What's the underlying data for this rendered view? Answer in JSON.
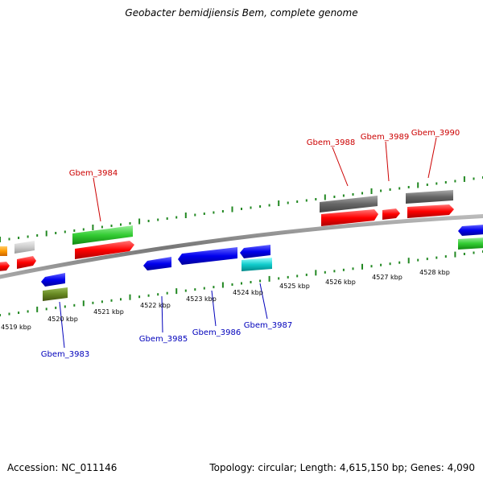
{
  "title": "Geobacter bemidjiensis Bem, complete genome",
  "footer": {
    "accession": "Accession: NC_011146",
    "topology": "Topology: circular; Length: 4,615,150 bp; Genes: 4,090"
  },
  "colors": {
    "forward_label": "#cc0000",
    "reverse_label": "#0000bb",
    "tick": "#228822",
    "backbone": "#888888"
  },
  "tick_labels": [
    "4519 kbp",
    "4520 kbp",
    "4521 kbp",
    "4522 kbp",
    "4523 kbp",
    "4524 kbp",
    "4525 kbp",
    "4526 kbp",
    "4527 kbp",
    "4528 kbp"
  ],
  "gene_labels": {
    "forward": [
      "Gbem_3984",
      "Gbem_3988",
      "Gbem_3989",
      "Gbem_3990"
    ],
    "reverse": [
      "Gbem_3983",
      "Gbem_3985",
      "Gbem_3986",
      "Gbem_3987"
    ]
  }
}
